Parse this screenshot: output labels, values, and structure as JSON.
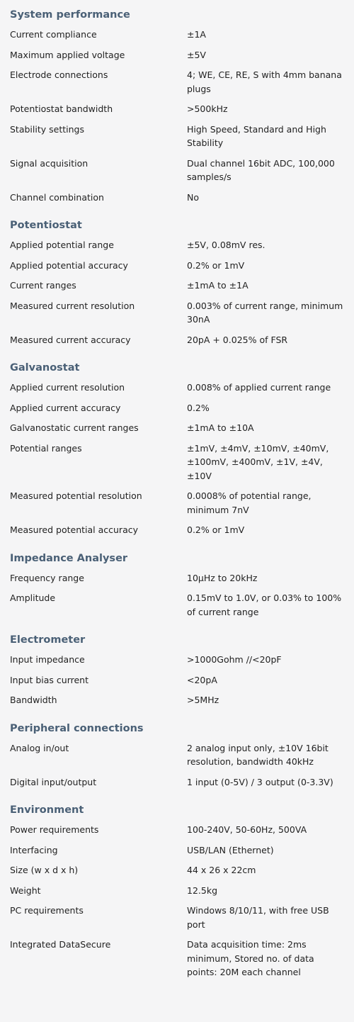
{
  "sections": [
    {
      "title": "System performance",
      "rows": [
        {
          "label": "Current compliance",
          "value": "±1A"
        },
        {
          "label": "Maximum applied voltage",
          "value": "±5V"
        },
        {
          "label": "Electrode connections",
          "value": "4; WE, CE, RE, S with 4mm banana plugs"
        },
        {
          "label": "Potentiostat bandwidth",
          "value": ">500kHz"
        },
        {
          "label": "Stability settings",
          "value": "High Speed, Standard and High Stability"
        },
        {
          "label": "Signal acquisition",
          "value": "Dual channel 16bit ADC, 100,000 samples/s"
        },
        {
          "label": "Channel combination",
          "value": "No"
        }
      ]
    },
    {
      "title": "Potentiostat",
      "rows": [
        {
          "label": "Applied potential range",
          "value": "±5V, 0.08mV res."
        },
        {
          "label": "Applied potential accuracy",
          "value": "0.2% or 1mV"
        },
        {
          "label": "Current ranges",
          "value": "±1mA to ±1A"
        },
        {
          "label": "Measured current resolution",
          "value": "0.003% of current range, minimum 30nA"
        },
        {
          "label": "Measured current accuracy",
          "value": "20pA + 0.025% of FSR"
        }
      ]
    },
    {
      "title": "Galvanostat",
      "rows": [
        {
          "label": "Applied current resolution",
          "value": "0.008% of applied current range"
        },
        {
          "label": "Applied current accuracy",
          "value": "0.2%"
        },
        {
          "label": "Galvanostatic current ranges",
          "value": "±1mA to ±10A"
        },
        {
          "label": "Potential ranges",
          "value": "±1mV, ±4mV, ±10mV, ±40mV, ±100mV, ±400mV, ±1V, ±4V, ±10V"
        },
        {
          "label": "Measured potential resolution",
          "value": "0.0008% of potential range, minimum 7nV"
        },
        {
          "label": "Measured potential accuracy",
          "value": "0.2% or 1mV"
        }
      ]
    },
    {
      "title": "Impedance Analyser",
      "rows": [
        {
          "label": "Frequency range",
          "value": "10µHz to 20kHz"
        },
        {
          "label": "Amplitude",
          "value": "0.15mV to 1.0V, or 0.03% to 100% of current range"
        }
      ]
    },
    {
      "title": "Electrometer",
      "rows": [
        {
          "label": "Input impedance",
          "value": ">1000Gohm //<20pF"
        },
        {
          "label": "Input bias current",
          "value": "<20pA"
        },
        {
          "label": "Bandwidth",
          "value": ">5MHz"
        }
      ]
    },
    {
      "title": "Peripheral connections",
      "rows": [
        {
          "label": "Analog in/out",
          "value": "2 analog input only, ±10V 16bit resolution, bandwidth 40kHz"
        },
        {
          "label": "Digital input/output",
          "value": "1 input (0-5V) / 3 output (0-3.3V)"
        }
      ]
    },
    {
      "title": "Environment",
      "rows": [
        {
          "label": "Power requirements",
          "value": "100-240V, 50-60Hz, 500VA"
        },
        {
          "label": "Interfacing",
          "value": "USB/LAN (Ethernet)"
        },
        {
          "label": "Size (w x d x h)",
          "value": "44 x 26 x 22cm"
        },
        {
          "label": "Weight",
          "value": "12.5kg"
        },
        {
          "label": "PC requirements",
          "value": "Windows 8/10/11, with free USB port"
        },
        {
          "label": "Integrated DataSecure",
          "value": "Data acquisition time: 2ms minimum, Stored no. of data points: 20M each channel"
        }
      ]
    }
  ]
}
